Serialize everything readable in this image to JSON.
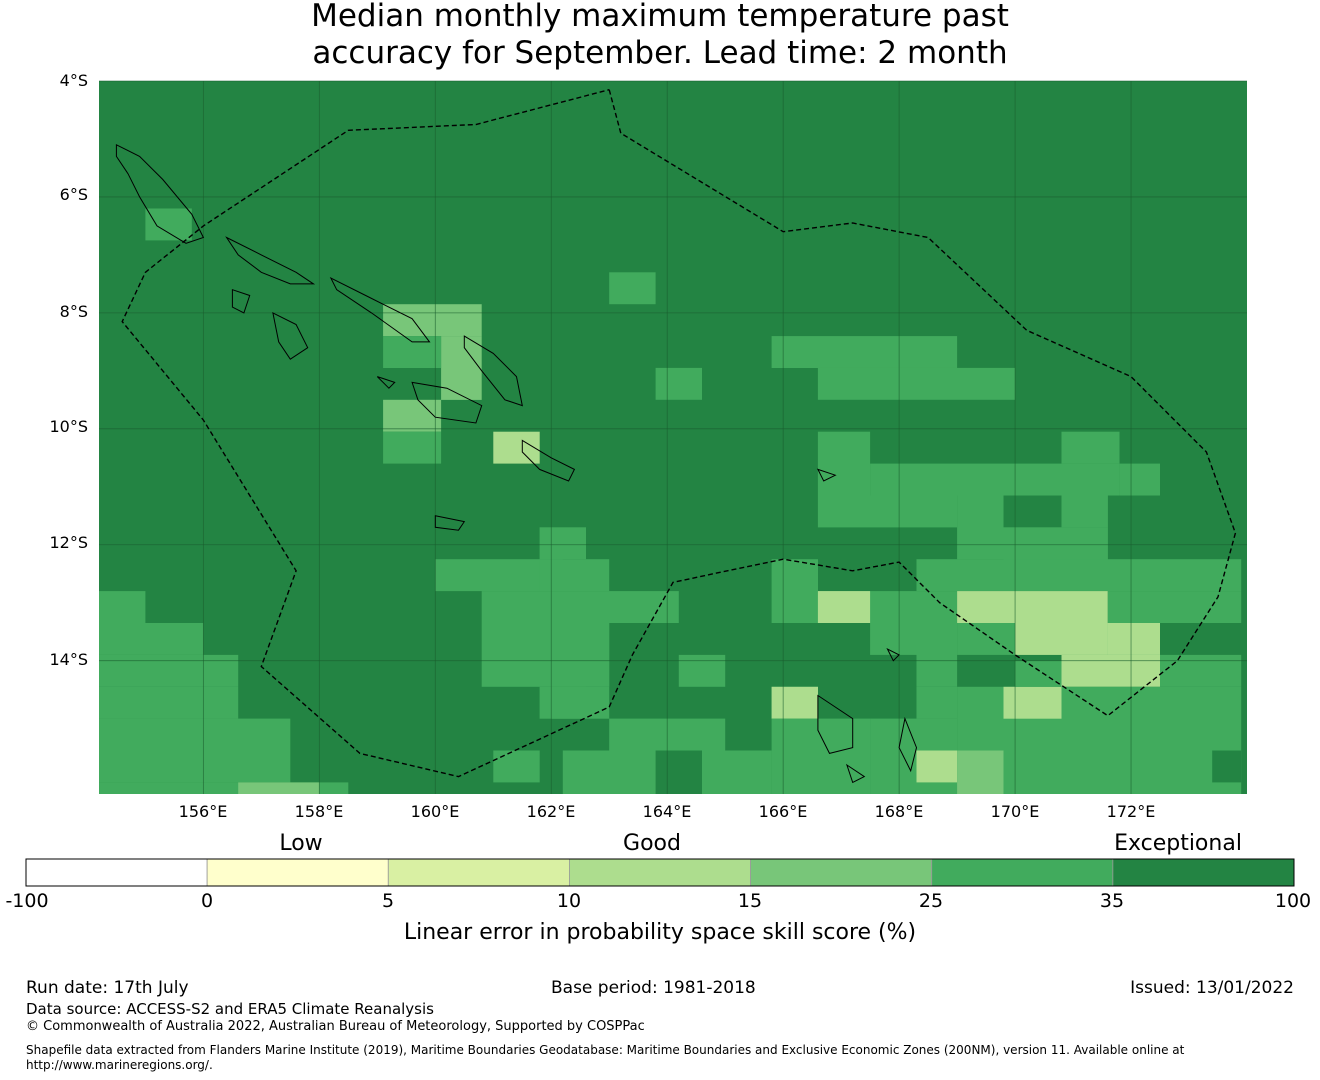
{
  "title_line1": "Median monthly maximum temperature past",
  "title_line2": "accuracy for September. Lead time: 2 month",
  "lat_labels": [
    "4°S",
    "6°S",
    "8°S",
    "10°S",
    "12°S",
    "14°S"
  ],
  "lon_labels": [
    "156°E",
    "158°E",
    "160°E",
    "162°E",
    "164°E",
    "166°E",
    "168°E",
    "170°E",
    "172°E"
  ],
  "colorbar": {
    "category_labels": {
      "low": "Low",
      "good": "Good",
      "exceptional": "Exceptional"
    },
    "ticks": [
      "-100",
      "0",
      "5",
      "10",
      "15",
      "25",
      "35",
      "100"
    ],
    "colors": [
      "#ffffff",
      "#ffffcc",
      "#d9f0a3",
      "#addd8e",
      "#78c679",
      "#41ab5d",
      "#238443"
    ],
    "label": "Linear error in probability space skill score (%)"
  },
  "footer": {
    "run_date": "Run date: 17th July",
    "base_period": "Base period: 1981-2018",
    "issued": "Issued: 13/01/2022",
    "data_source": "Data source: ACCESS-S2 and ERA5 Climate Reanalysis",
    "copyright": "© Commonwealth of Australia 2022, Australian Bureau of Meteorology, Supported by COSPPac",
    "shapefile": "Shapefile data extracted from Flanders Marine Institute (2019), Maritime Boundaries Geodatabase: Maritime Boundaries and Exclusive Economic Zones (200NM), version 11. Available online at",
    "url": "http://www.marineregions.org/."
  },
  "map": {
    "extent": {
      "lon_min": 154.2,
      "lon_max": 174.0,
      "lat_max": -4.0,
      "lat_min": -16.3
    },
    "grid_lats": [
      -4,
      -6,
      -8,
      -10,
      -12,
      -14
    ],
    "grid_lons": [
      156,
      158,
      160,
      162,
      164,
      166,
      168,
      170,
      172
    ],
    "base_level": 6,
    "level_colors": [
      "#ffffff",
      "#ffffcc",
      "#d9f0a3",
      "#addd8e",
      "#78c679",
      "#41ab5d",
      "#238443"
    ],
    "cells": [
      [
        -6.2,
        -6.75,
        155.0,
        155.8,
        5
      ],
      [
        -7.3,
        -7.85,
        163.0,
        163.8,
        5
      ],
      [
        -7.85,
        -8.4,
        159.1,
        160.8,
        4
      ],
      [
        -8.4,
        -9.5,
        160.1,
        160.8,
        4
      ],
      [
        -8.4,
        -8.95,
        159.1,
        160.1,
        5
      ],
      [
        -9.5,
        -10.05,
        159.1,
        160.1,
        4
      ],
      [
        -10.05,
        -10.6,
        159.1,
        160.1,
        5
      ],
      [
        -10.05,
        -10.6,
        161.0,
        161.8,
        3
      ],
      [
        -8.95,
        -9.5,
        163.8,
        164.6,
        5
      ],
      [
        -8.4,
        -8.95,
        165.8,
        169.0,
        5
      ],
      [
        -8.95,
        -9.5,
        166.6,
        170.0,
        5
      ],
      [
        -10.05,
        -11.15,
        166.6,
        167.5,
        5
      ],
      [
        -10.6,
        -11.15,
        167.5,
        171.8,
        5
      ],
      [
        -10.05,
        -10.6,
        170.8,
        171.8,
        5
      ],
      [
        -10.6,
        -11.15,
        171.8,
        172.5,
        5
      ],
      [
        -11.15,
        -11.7,
        166.6,
        168.3,
        5
      ],
      [
        -11.15,
        -11.7,
        168.3,
        169.0,
        5
      ],
      [
        -11.15,
        -12.25,
        169.0,
        169.8,
        5
      ],
      [
        -11.15,
        -11.7,
        170.8,
        171.6,
        5
      ],
      [
        -11.7,
        -12.8,
        169.8,
        171.6,
        5
      ],
      [
        -12.25,
        -13.35,
        165.8,
        166.6,
        5
      ],
      [
        -12.8,
        -13.35,
        166.6,
        168.3,
        5
      ],
      [
        -12.8,
        -13.35,
        168.3,
        169.0,
        5
      ],
      [
        -13.35,
        -13.9,
        167.5,
        168.3,
        5
      ],
      [
        -13.35,
        -14.45,
        168.3,
        169.0,
        5
      ],
      [
        -12.25,
        -12.8,
        168.3,
        173.9,
        5
      ],
      [
        -12.8,
        -13.35,
        169.0,
        171.6,
        3
      ],
      [
        -12.8,
        -13.35,
        171.6,
        173.9,
        5
      ],
      [
        -13.35,
        -13.9,
        169.0,
        172.5,
        5
      ],
      [
        -13.35,
        -13.9,
        170.0,
        171.6,
        3
      ],
      [
        -13.9,
        -14.45,
        170.8,
        172.5,
        3
      ],
      [
        -12.8,
        -13.35,
        166.6,
        167.5,
        3
      ],
      [
        -13.35,
        -13.9,
        171.6,
        172.5,
        3
      ],
      [
        -13.9,
        -14.45,
        172.5,
        173.9,
        5
      ],
      [
        -14.45,
        -16.3,
        169.0,
        173.9,
        5
      ],
      [
        -14.45,
        -15.0,
        169.8,
        170.8,
        3
      ],
      [
        -14.0,
        -14.45,
        170.8,
        170.0,
        5
      ],
      [
        -14.45,
        -15.0,
        168.3,
        169.0,
        5
      ],
      [
        -15.0,
        -16.3,
        167.5,
        169.0,
        5
      ],
      [
        -15.55,
        -16.1,
        168.3,
        169.0,
        3
      ],
      [
        -14.45,
        -15.0,
        165.8,
        166.6,
        5
      ],
      [
        -14.45,
        -15.0,
        166.6,
        165.8,
        5
      ],
      [
        -14.45,
        -15.0,
        165.8,
        166.6,
        3
      ],
      [
        -15.0,
        -16.3,
        165.8,
        167.5,
        5
      ],
      [
        -15.0,
        -15.55,
        163.0,
        165.0,
        5
      ],
      [
        -15.55,
        -16.3,
        162.2,
        163.8,
        5
      ],
      [
        -15.55,
        -16.3,
        164.6,
        165.8,
        5
      ],
      [
        -12.25,
        -12.8,
        160.0,
        162.2,
        5
      ],
      [
        -11.7,
        -12.25,
        161.8,
        162.6,
        5
      ],
      [
        -12.25,
        -12.8,
        161.8,
        163.0,
        5
      ],
      [
        -12.8,
        -13.35,
        160.8,
        164.2,
        5
      ],
      [
        -13.35,
        -14.45,
        160.8,
        163.0,
        5
      ],
      [
        -14.45,
        -15.0,
        162.0,
        163.0,
        5
      ],
      [
        -13.9,
        -14.45,
        164.2,
        165.0,
        5
      ],
      [
        -14.45,
        -15.0,
        161.8,
        162.6,
        5
      ],
      [
        -15.55,
        -16.1,
        161.0,
        161.8,
        5
      ],
      [
        -12.8,
        -13.35,
        154.2,
        155.0,
        5
      ],
      [
        -13.35,
        -13.9,
        154.2,
        156.0,
        5
      ],
      [
        -13.9,
        -14.45,
        154.2,
        156.6,
        5
      ],
      [
        -14.45,
        -15.0,
        154.2,
        156.6,
        5
      ],
      [
        -15.0,
        -15.55,
        154.2,
        157.5,
        5
      ],
      [
        -15.55,
        -16.1,
        154.2,
        157.5,
        5
      ],
      [
        -16.1,
        -16.3,
        154.2,
        158.5,
        5
      ],
      [
        -16.1,
        -16.3,
        156.6,
        158.0,
        4
      ],
      [
        -15.55,
        -16.3,
        169.0,
        169.8,
        4
      ],
      [
        -15.55,
        -16.1,
        173.4,
        173.9,
        6
      ]
    ],
    "eez": [
      [
        163.0,
        -4.15
      ],
      [
        163.2,
        -4.9
      ],
      [
        166.0,
        -6.6
      ],
      [
        167.2,
        -6.45
      ],
      [
        168.5,
        -6.7
      ],
      [
        170.2,
        -8.3
      ],
      [
        172.0,
        -9.1
      ],
      [
        173.3,
        -10.4
      ],
      [
        173.8,
        -11.8
      ],
      [
        173.5,
        -12.9
      ],
      [
        172.8,
        -14.0
      ],
      [
        171.6,
        -14.95
      ],
      [
        170.0,
        -13.9
      ],
      [
        168.7,
        -13.0
      ],
      [
        168.0,
        -12.3
      ],
      [
        167.2,
        -12.45
      ],
      [
        166.0,
        -12.25
      ],
      [
        164.8,
        -12.5
      ],
      [
        164.1,
        -12.65
      ],
      [
        163.4,
        -13.9
      ],
      [
        163.0,
        -14.8
      ],
      [
        160.4,
        -16.0
      ],
      [
        158.7,
        -15.6
      ],
      [
        157.0,
        -14.1
      ],
      [
        157.6,
        -12.45
      ],
      [
        156.0,
        -9.85
      ],
      [
        154.6,
        -8.15
      ],
      [
        155.0,
        -7.3
      ],
      [
        156.0,
        -6.5
      ],
      [
        158.5,
        -4.85
      ],
      [
        160.7,
        -4.75
      ],
      [
        163.0,
        -4.15
      ]
    ],
    "islands": [
      [
        [
          154.5,
          -5.1
        ],
        [
          154.9,
          -5.3
        ],
        [
          155.3,
          -5.7
        ],
        [
          155.8,
          -6.3
        ],
        [
          156.0,
          -6.7
        ],
        [
          155.7,
          -6.8
        ],
        [
          155.2,
          -6.5
        ],
        [
          154.9,
          -6.0
        ],
        [
          154.7,
          -5.6
        ],
        [
          154.5,
          -5.3
        ]
      ],
      [
        [
          156.4,
          -6.7
        ],
        [
          157.0,
          -7.0
        ],
        [
          157.6,
          -7.3
        ],
        [
          157.9,
          -7.5
        ],
        [
          157.5,
          -7.5
        ],
        [
          157.0,
          -7.3
        ],
        [
          156.6,
          -7.0
        ]
      ],
      [
        [
          156.5,
          -7.6
        ],
        [
          156.8,
          -7.7
        ],
        [
          156.7,
          -8.0
        ],
        [
          156.5,
          -7.9
        ]
      ],
      [
        [
          157.2,
          -8.0
        ],
        [
          157.6,
          -8.2
        ],
        [
          157.8,
          -8.6
        ],
        [
          157.5,
          -8.8
        ],
        [
          157.3,
          -8.5
        ]
      ],
      [
        [
          158.2,
          -7.4
        ],
        [
          158.8,
          -7.7
        ],
        [
          159.6,
          -8.1
        ],
        [
          159.9,
          -8.5
        ],
        [
          159.6,
          -8.5
        ],
        [
          158.9,
          -8.0
        ],
        [
          158.3,
          -7.6
        ]
      ],
      [
        [
          159.6,
          -9.2
        ],
        [
          160.2,
          -9.3
        ],
        [
          160.8,
          -9.6
        ],
        [
          160.7,
          -9.9
        ],
        [
          160.0,
          -9.8
        ],
        [
          159.7,
          -9.5
        ]
      ],
      [
        [
          160.5,
          -8.4
        ],
        [
          161.0,
          -8.7
        ],
        [
          161.4,
          -9.1
        ],
        [
          161.5,
          -9.6
        ],
        [
          161.2,
          -9.5
        ],
        [
          160.8,
          -9.0
        ],
        [
          160.5,
          -8.6
        ]
      ],
      [
        [
          161.5,
          -10.2
        ],
        [
          162.0,
          -10.5
        ],
        [
          162.4,
          -10.7
        ],
        [
          162.3,
          -10.9
        ],
        [
          161.8,
          -10.7
        ],
        [
          161.5,
          -10.4
        ]
      ],
      [
        [
          159.0,
          -9.1
        ],
        [
          159.3,
          -9.2
        ],
        [
          159.2,
          -9.3
        ]
      ],
      [
        [
          160.0,
          -11.5
        ],
        [
          160.5,
          -11.6
        ],
        [
          160.4,
          -11.75
        ],
        [
          160.0,
          -11.7
        ]
      ],
      [
        [
          166.6,
          -10.7
        ],
        [
          166.9,
          -10.8
        ],
        [
          166.7,
          -10.9
        ]
      ],
      [
        [
          167.8,
          -13.8
        ],
        [
          168.0,
          -13.9
        ],
        [
          167.9,
          -14.0
        ]
      ],
      [
        [
          166.6,
          -14.6
        ],
        [
          167.2,
          -15.0
        ],
        [
          167.2,
          -15.5
        ],
        [
          166.8,
          -15.6
        ],
        [
          166.6,
          -15.2
        ]
      ],
      [
        [
          168.1,
          -15.0
        ],
        [
          168.3,
          -15.5
        ],
        [
          168.2,
          -15.9
        ],
        [
          168.0,
          -15.5
        ]
      ],
      [
        [
          167.1,
          -15.8
        ],
        [
          167.4,
          -16.0
        ],
        [
          167.2,
          -16.1
        ]
      ]
    ]
  }
}
